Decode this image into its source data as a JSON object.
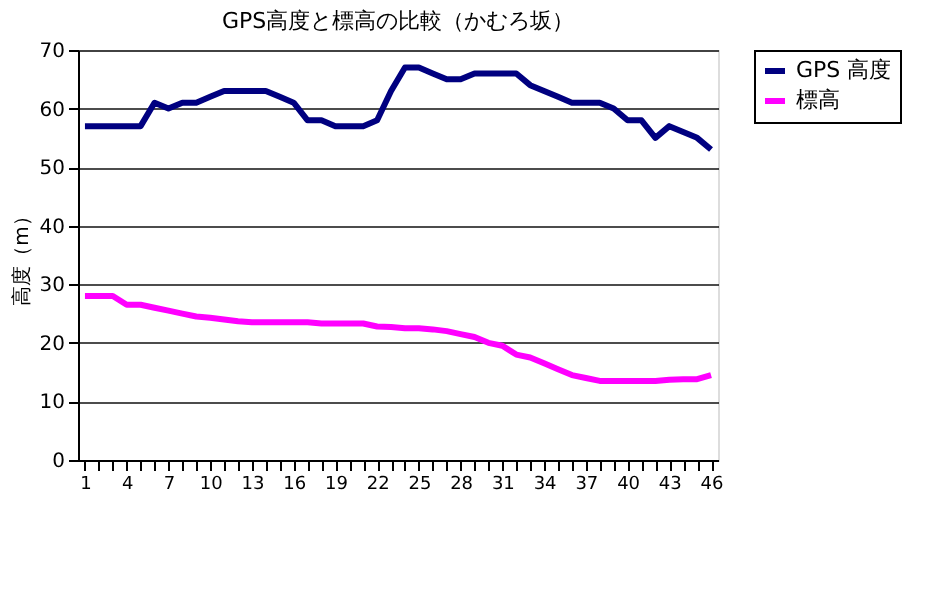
{
  "chart_data": {
    "type": "line",
    "title": "GPS高度と標高の比較（かむろ坂）",
    "ylabel": "高度（m）",
    "categories": [
      "1",
      null,
      null,
      "4",
      null,
      null,
      "7",
      null,
      null,
      "10",
      null,
      null,
      "13",
      null,
      null,
      "16",
      null,
      null,
      "19",
      null,
      null,
      "22",
      null,
      null,
      "25",
      null,
      null,
      "28",
      null,
      null,
      "31",
      null,
      null,
      "34",
      null,
      null,
      "37",
      null,
      null,
      "40",
      null,
      null,
      "43",
      null,
      null,
      "46"
    ],
    "series": [
      {
        "name": "GPS 高度",
        "color": "#000080",
        "values": [
          57,
          57,
          57,
          57,
          57,
          61,
          60,
          61,
          61,
          62,
          63,
          63,
          63,
          63,
          62,
          61,
          58,
          58,
          57,
          57,
          57,
          58,
          63,
          67,
          67,
          66,
          65,
          65,
          66,
          66,
          66,
          66,
          64,
          63,
          62,
          61,
          61,
          61,
          60,
          58,
          58,
          55,
          57,
          56,
          55,
          53
        ]
      },
      {
        "name": "標高",
        "color": "#ff00ff",
        "values": [
          28,
          28,
          28,
          26.5,
          26.5,
          26,
          25.5,
          25,
          24.5,
          24.3,
          24,
          23.7,
          23.5,
          23.5,
          23.5,
          23.5,
          23.5,
          23.3,
          23.3,
          23.3,
          23.3,
          22.8,
          22.7,
          22.5,
          22.5,
          22.3,
          22,
          21.5,
          21,
          20,
          19.5,
          18,
          17.5,
          16.5,
          15.5,
          14.5,
          14,
          13.5,
          13.5,
          13.5,
          13.5,
          13.5,
          13.7,
          13.8,
          13.8,
          14.5
        ]
      }
    ],
    "ylim": [
      0,
      70
    ],
    "yticks": [
      0,
      10,
      20,
      30,
      40,
      50,
      60,
      70
    ],
    "grid": "y",
    "legend": "right",
    "marker": "none",
    "line_style": "solid"
  }
}
